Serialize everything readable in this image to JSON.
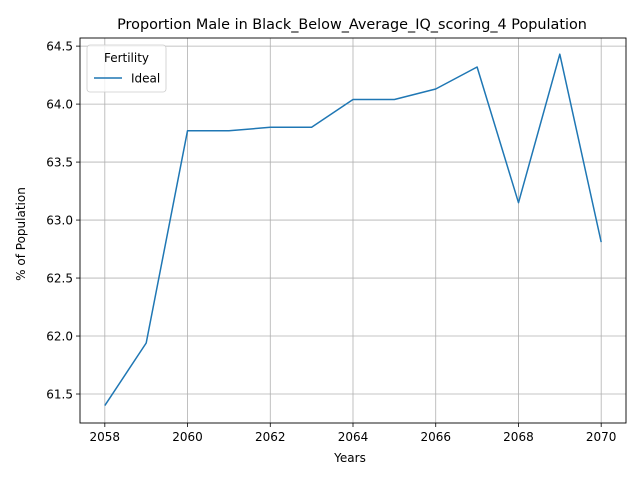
{
  "chart_data": {
    "type": "line",
    "title": "Proportion Male in Black_Below_Average_IQ_scoring_4 Population",
    "xlabel": "Years",
    "ylabel": "% of Population",
    "xlim": [
      2057.4,
      2070.6
    ],
    "ylim": [
      61.25,
      64.57
    ],
    "xticks": [
      2058,
      2060,
      2062,
      2064,
      2066,
      2068,
      2070
    ],
    "yticks": [
      61.5,
      62.0,
      62.5,
      63.0,
      63.5,
      64.0,
      64.5
    ],
    "ytick_labels": [
      "61.5",
      "62.0",
      "62.5",
      "63.0",
      "63.5",
      "64.0",
      "64.5"
    ],
    "grid": true,
    "legend": {
      "title": "Fertility",
      "placement": "top-left"
    },
    "series": [
      {
        "name": "Ideal",
        "color": "#1f77b4",
        "x": [
          2058,
          2059,
          2060,
          2061,
          2062,
          2063,
          2064,
          2065,
          2066,
          2067,
          2068,
          2069,
          2070
        ],
        "y": [
          61.4,
          61.94,
          63.77,
          63.77,
          63.8,
          63.8,
          64.04,
          64.04,
          64.13,
          64.32,
          63.15,
          64.43,
          62.81
        ]
      }
    ]
  }
}
